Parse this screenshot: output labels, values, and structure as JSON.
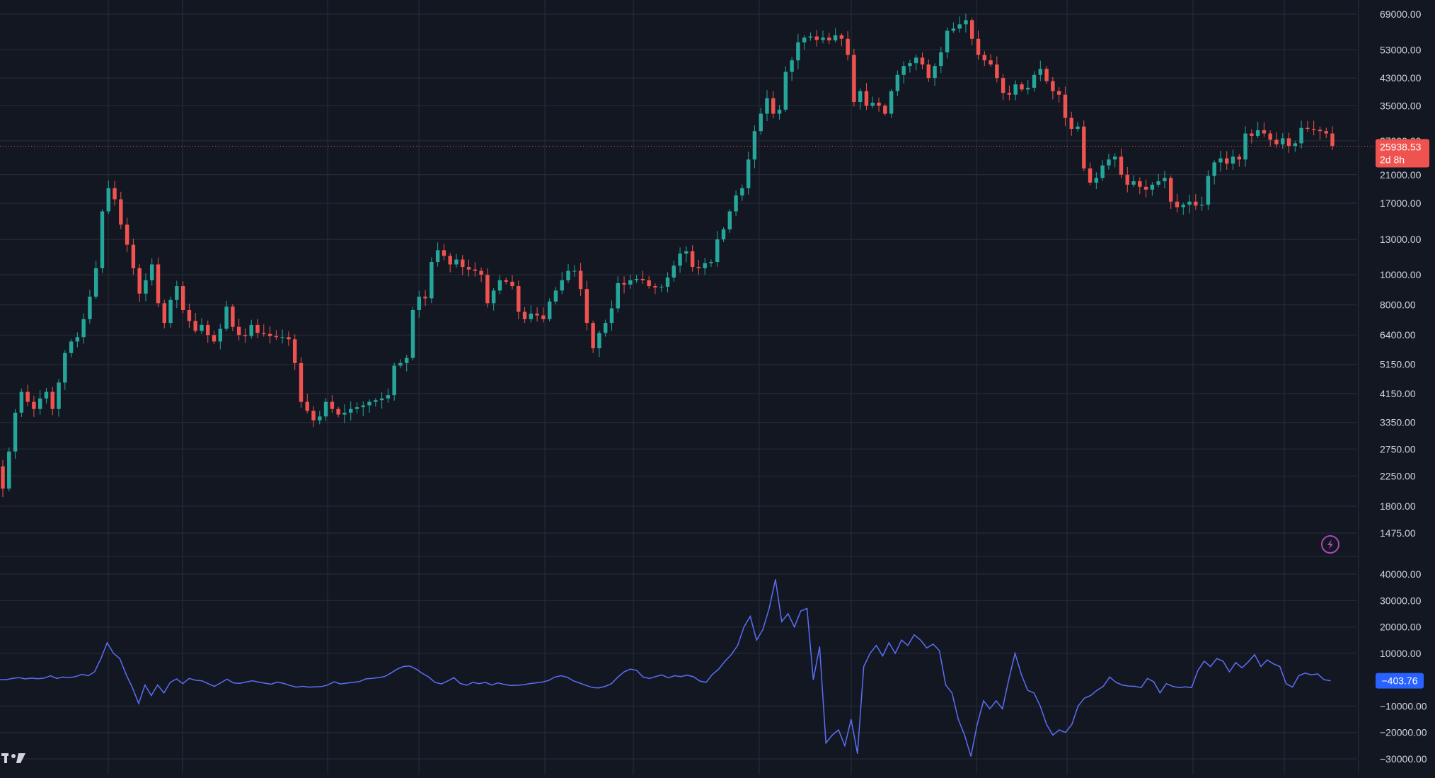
{
  "chart_data": [
    {
      "type": "candlestick",
      "scale": "log",
      "ylim": [
        1475,
        69000
      ],
      "y_ticks": [
        {
          "value": 69000,
          "label": "69000.00"
        },
        {
          "value": 53000,
          "label": "53000.00"
        },
        {
          "value": 43000,
          "label": "43000.00"
        },
        {
          "value": 35000,
          "label": "35000.00"
        },
        {
          "value": 27000,
          "label": "27000.00"
        },
        {
          "value": 21000,
          "label": "21000.00"
        },
        {
          "value": 17000,
          "label": "17000.00"
        },
        {
          "value": 13000,
          "label": "13000.00"
        },
        {
          "value": 10000,
          "label": "10000.00"
        },
        {
          "value": 8000,
          "label": "8000.00"
        },
        {
          "value": 6400,
          "label": "6400.00"
        },
        {
          "value": 5150,
          "label": "5150.00"
        },
        {
          "value": 4150,
          "label": "4150.00"
        },
        {
          "value": 3350,
          "label": "3350.00"
        },
        {
          "value": 2750,
          "label": "2750.00"
        },
        {
          "value": 2250,
          "label": "2250.00"
        },
        {
          "value": 1800,
          "label": "1800.00"
        },
        {
          "value": 1475,
          "label": "1475.00"
        }
      ],
      "grid": true,
      "up_color": "#26a69a",
      "down_color": "#ef5350",
      "last_price": {
        "value": 25938.53,
        "label": "25938.53",
        "countdown": "2d 8h"
      },
      "closes": [
        2050,
        2700,
        3600,
        4200,
        3900,
        3700,
        4000,
        4200,
        3700,
        4500,
        5600,
        6100,
        6300,
        7200,
        8500,
        10500,
        16000,
        19000,
        17500,
        14500,
        12500,
        10500,
        8700,
        9600,
        10800,
        8100,
        7000,
        8300,
        9200,
        7700,
        7100,
        6600,
        6900,
        6400,
        6100,
        6700,
        7900,
        6800,
        6400,
        6350,
        6900,
        6500,
        6450,
        6350,
        6300,
        6300,
        6200,
        5200,
        3900,
        3650,
        3400,
        3500,
        3900,
        3700,
        3550,
        3600,
        3700,
        3750,
        3800,
        3900,
        3950,
        4000,
        4100,
        5100,
        5200,
        5400,
        7700,
        8500,
        8400,
        11000,
        12000,
        11500,
        10800,
        11200,
        10600,
        10400,
        10300,
        10000,
        8100,
        8900,
        9600,
        9500,
        9200,
        7600,
        7200,
        7500,
        7400,
        7200,
        8200,
        8900,
        9600,
        10300,
        10300,
        9000,
        7000,
        5800,
        6500,
        7000,
        7800,
        9400,
        9300,
        9600,
        9700,
        9600,
        9200,
        9100,
        9150,
        9800,
        10700,
        11700,
        11900,
        10600,
        10500,
        10900,
        11000,
        13000,
        14000,
        16000,
        18000,
        19000,
        23500,
        29000,
        33000,
        37000,
        33000,
        34000,
        45000,
        49000,
        56000,
        58000,
        58500,
        57000,
        58000,
        56800,
        59000,
        57500,
        51000,
        36000,
        39000,
        35000,
        35800,
        35000,
        33000,
        39000,
        44000,
        47000,
        48000,
        50000,
        47500,
        43000,
        47000,
        52000,
        61000,
        62000,
        64000,
        66000,
        57500,
        51000,
        49000,
        47500,
        43000,
        38500,
        38000,
        41000,
        39500,
        40000,
        44000,
        46000,
        42000,
        39000,
        38000,
        32000,
        29500,
        30000,
        22000,
        19800,
        20500,
        22500,
        23500,
        24000,
        21000,
        19500,
        20000,
        19200,
        18800,
        19500,
        20000,
        20500,
        17200,
        16500,
        16800,
        17200,
        16700,
        16800,
        20800,
        23000,
        23700,
        22800,
        24000,
        23500,
        28500,
        28000,
        29200,
        28500,
        27200,
        26300,
        27500,
        26000,
        26500,
        29700,
        29500,
        29300,
        29000,
        28500,
        26000
      ],
      "x_label": "",
      "y_label": ""
    },
    {
      "type": "line",
      "ylim": [
        -30000,
        40000
      ],
      "y_ticks": [
        {
          "value": 40000,
          "label": "40000.00"
        },
        {
          "value": 30000,
          "label": "30000.00"
        },
        {
          "value": 20000,
          "label": "20000.00"
        },
        {
          "value": 10000,
          "label": "10000.00"
        },
        {
          "value": -10000,
          "label": "−10000.00"
        },
        {
          "value": -20000,
          "label": "−20000.00"
        },
        {
          "value": -30000,
          "label": "−30000.00"
        }
      ],
      "grid": true,
      "series_color": "#5b6ef5",
      "last_value": {
        "value": -403.76,
        "label": "−403.76"
      },
      "values": [
        0,
        0,
        500,
        800,
        300,
        600,
        400,
        600,
        1500,
        500,
        1000,
        800,
        1200,
        2000,
        1500,
        3000,
        8000,
        14000,
        10000,
        8000,
        2000,
        -3000,
        -9000,
        -2000,
        -6000,
        -2000,
        -5000,
        -1000,
        300,
        -1500,
        500,
        -200,
        -400,
        -1500,
        -2500,
        -1200,
        200,
        -1200,
        -1400,
        -900,
        -400,
        -900,
        -1300,
        -1700,
        -900,
        -1400,
        -2200,
        -2800,
        -2500,
        -2800,
        -2700,
        -2600,
        -2000,
        -800,
        -1600,
        -1300,
        -1000,
        -700,
        300,
        500,
        800,
        1200,
        2500,
        4000,
        5000,
        5200,
        4000,
        2400,
        1000,
        -1000,
        -1600,
        -500,
        800,
        -1400,
        -2100,
        -1000,
        -1500,
        -1000,
        -2000,
        -1200,
        -1800,
        -2200,
        -2100,
        -1900,
        -1500,
        -1200,
        -900,
        -300,
        1000,
        1500,
        900,
        -500,
        -1300,
        -2200,
        -3000,
        -3100,
        -2500,
        -1500,
        1000,
        3000,
        4000,
        3500,
        1000,
        500,
        1200,
        1800,
        700,
        1500,
        1200,
        1700,
        1100,
        -500,
        -1000,
        2000,
        4000,
        7000,
        9500,
        13000,
        20000,
        24000,
        15000,
        19000,
        27000,
        38000,
        22000,
        25000,
        20000,
        26000,
        27000,
        0,
        12500,
        -24000,
        -21000,
        -19000,
        -25000,
        -15000,
        -28000,
        5000,
        10000,
        13000,
        9000,
        14000,
        10000,
        15000,
        13000,
        17000,
        15000,
        12000,
        13500,
        11000,
        -2000,
        -5000,
        -15000,
        -21000,
        -29000,
        -17000,
        -8000,
        -11000,
        -8000,
        -11000,
        0,
        10000,
        2000,
        -4000,
        -5000,
        -10000,
        -17000,
        -21000,
        -19000,
        -20000,
        -17000,
        -10000,
        -7000,
        -6000,
        -4000,
        -2500,
        1000,
        -1000,
        -2000,
        -2400,
        -2500,
        -3000,
        500,
        -800,
        -5000,
        -1500,
        -2500,
        -3000,
        -2700,
        -3000,
        3500,
        7000,
        5000,
        8000,
        7000,
        3000,
        6500,
        4500,
        6800,
        9500,
        5000,
        7500,
        6000,
        5000,
        -1500,
        -2800,
        1500,
        2500,
        1800,
        2200,
        0,
        -403.76
      ]
    }
  ]
}
